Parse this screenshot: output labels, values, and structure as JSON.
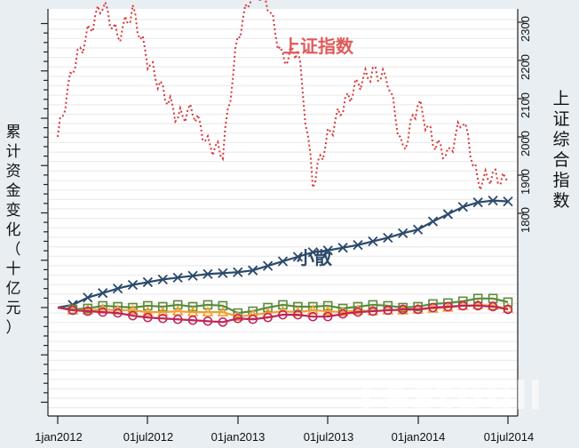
{
  "chart_data": {
    "type": "line",
    "title": "",
    "xlabel": "",
    "ylabel_left": "累计资金变化（十亿元）",
    "ylabel_right": "上证综合指数",
    "x_ticks": [
      "1jan2012",
      "01jul2012",
      "01jan2013",
      "01jul2013",
      "01jan2014",
      "01jul2014"
    ],
    "y_right_ticks": [
      1800,
      1900,
      2000,
      2100,
      2200,
      2300
    ],
    "y_right_range": [
      1640,
      2340
    ],
    "grid": true,
    "annotations": [
      {
        "text": "上证指数",
        "color": "#e05a5a"
      },
      {
        "text": "小散",
        "color": "#2b4a6b"
      }
    ],
    "x": [
      "2012-01",
      "2012-02",
      "2012-03",
      "2012-04",
      "2012-05",
      "2012-06",
      "2012-07",
      "2012-08",
      "2012-09",
      "2012-10",
      "2012-11",
      "2012-12",
      "2013-01",
      "2013-02",
      "2013-03",
      "2013-04",
      "2013-05",
      "2013-06",
      "2013-07",
      "2013-08",
      "2013-09",
      "2013-10",
      "2013-11",
      "2013-12",
      "2014-01",
      "2014-02",
      "2014-03",
      "2014-04",
      "2014-05",
      "2014-06",
      "2014-07"
    ],
    "series": [
      {
        "name": "上证指数",
        "axis": "right",
        "style": "dotted",
        "color": "#d9373a",
        "values": [
          2000,
          2180,
          2270,
          2350,
          2260,
          2330,
          2200,
          2120,
          2050,
          2070,
          1980,
          1960,
          2260,
          2390,
          2350,
          2200,
          2230,
          1880,
          2000,
          2080,
          2140,
          2170,
          2150,
          1960,
          2090,
          1990,
          1950,
          2050,
          1880,
          1900,
          1880
        ]
      },
      {
        "name": "小散",
        "axis": "left",
        "style": "solid-x",
        "color": "#2b4a6b",
        "values": [
          0,
          0.3,
          1.1,
          1.6,
          2.1,
          2.5,
          2.8,
          3.1,
          3.3,
          3.5,
          3.7,
          3.8,
          3.9,
          4.1,
          4.6,
          5.1,
          5.6,
          6.1,
          6.3,
          6.6,
          6.9,
          7.3,
          7.7,
          8.2,
          8.6,
          9.5,
          10.3,
          11.1,
          11.6,
          11.8,
          11.7
        ]
      },
      {
        "name": "series-green-square",
        "axis": "left",
        "style": "solid-square",
        "color": "#5b8a3a",
        "values": [
          0,
          -0.2,
          -0.1,
          0.2,
          0.1,
          0.0,
          0.2,
          0.1,
          0.3,
          0.1,
          0.3,
          0.2,
          -0.6,
          -0.4,
          0.0,
          0.3,
          0.1,
          0.1,
          0.2,
          -0.1,
          0.1,
          0.3,
          0.2,
          0.0,
          0.1,
          0.4,
          0.5,
          0.7,
          1.0,
          1.0,
          0.6
        ]
      },
      {
        "name": "series-orange-triangle",
        "axis": "left",
        "style": "solid-triangle",
        "color": "#f0a030",
        "values": [
          0,
          -0.3,
          -0.3,
          -0.2,
          -0.3,
          -0.3,
          -0.5,
          -0.5,
          -0.4,
          -0.5,
          -0.5,
          -0.5,
          -1.0,
          -0.8,
          -0.6,
          -0.4,
          -0.5,
          -0.3,
          -0.4,
          -0.5,
          -0.3,
          -0.4,
          -0.3,
          -0.3,
          -0.2,
          -0.1,
          0.0,
          0.2,
          0.3,
          0.2,
          -0.1
        ]
      },
      {
        "name": "series-crimson-circle",
        "axis": "left",
        "style": "solid-circle",
        "color": "#c0245a",
        "values": [
          0,
          -0.3,
          -0.4,
          -0.5,
          -0.6,
          -0.9,
          -1.1,
          -1.2,
          -1.3,
          -1.4,
          -1.5,
          -1.6,
          -1.2,
          -1.3,
          -1.1,
          -0.8,
          -0.8,
          -1.0,
          -1.0,
          -0.7,
          -0.5,
          -0.4,
          -0.3,
          -0.2,
          -0.2,
          0.0,
          0.1,
          0.2,
          0.2,
          0.1,
          -0.2
        ]
      }
    ]
  },
  "labels": {
    "ylabel_left_chars": [
      "累",
      "计",
      "资",
      "金",
      "变",
      "化",
      "（",
      "十",
      "亿",
      "元",
      "）"
    ],
    "ylabel_right_chars": [
      "上",
      "证",
      "综",
      "合",
      "指",
      "数"
    ],
    "annotation_index": "上证指数",
    "annotation_retail": "小散",
    "watermark": "FastBull",
    "xticks": [
      "1jan2012",
      "01jul2012",
      "01jan2013",
      "01jul2013",
      "01jan2014",
      "01jul2014"
    ],
    "rticks": [
      "1800",
      "1900",
      "2000",
      "2100",
      "2200",
      "2300"
    ]
  }
}
